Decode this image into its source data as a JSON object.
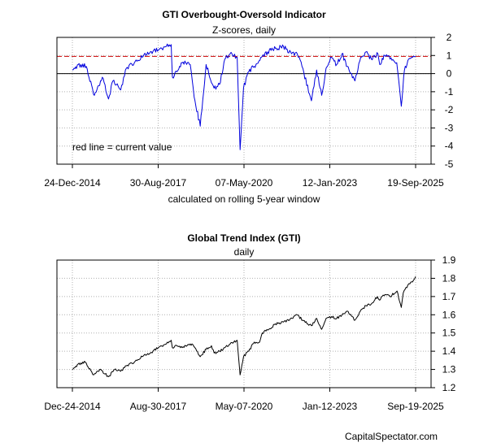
{
  "credit": "CapitalSpectator.com",
  "chart_data": [
    {
      "type": "line",
      "title": "GTI Overbought-Oversold Indicator",
      "subtitle": "Z-scores, daily",
      "xlabel": "calculated on rolling 5-year window",
      "x_tick_labels": [
        "24-Dec-2014",
        "30-Aug-2017",
        "07-May-2020",
        "12-Jan-2023",
        "19-Sep-2025"
      ],
      "y_ticks": [
        -5,
        -4,
        -3,
        -2,
        -1,
        0,
        1,
        2
      ],
      "ylim": [
        -5,
        2
      ],
      "xlim": [
        "2014-12-24",
        "2025-09-19"
      ],
      "grid": true,
      "annotation": "red line = current value",
      "reference_lines": [
        {
          "value": 0,
          "color": "#000000",
          "style": "solid"
        },
        {
          "value": 0.95,
          "color": "#cc0000",
          "style": "dashed"
        }
      ],
      "series": [
        {
          "color": "#0000dd",
          "x": [
            "2014-12-24",
            "2015-03-01",
            "2015-06-01",
            "2015-09-01",
            "2015-12-01",
            "2016-02-10",
            "2016-04-01",
            "2016-06-28",
            "2016-09-01",
            "2016-12-01",
            "2017-03-01",
            "2017-06-01",
            "2017-09-01",
            "2017-12-01",
            "2018-01-26",
            "2018-02-09",
            "2018-04-01",
            "2018-06-01",
            "2018-09-01",
            "2018-10-15",
            "2018-12-24",
            "2019-03-01",
            "2019-05-31",
            "2019-08-01",
            "2019-10-01",
            "2019-12-01",
            "2020-02-19",
            "2020-03-23",
            "2020-05-01",
            "2020-07-01",
            "2020-09-01",
            "2020-11-15",
            "2021-02-01",
            "2021-05-01",
            "2021-08-01",
            "2021-11-01",
            "2022-01-05",
            "2022-03-01",
            "2022-06-16",
            "2022-08-15",
            "2022-10-12",
            "2022-12-01",
            "2023-02-01",
            "2023-04-01",
            "2023-06-01",
            "2023-08-01",
            "2023-10-27",
            "2024-01-01",
            "2024-03-01",
            "2024-05-01",
            "2024-07-15",
            "2024-08-05",
            "2024-10-01",
            "2024-12-01",
            "2025-02-15",
            "2025-04-08",
            "2025-05-15",
            "2025-07-01",
            "2025-08-15",
            "2025-09-19"
          ],
          "values": [
            0.2,
            0.5,
            0.4,
            -1.2,
            -0.2,
            -1.4,
            -0.4,
            -0.9,
            0.3,
            0.6,
            0.9,
            1.2,
            1.3,
            1.5,
            1.6,
            -0.2,
            0.1,
            0.6,
            0.5,
            -1.3,
            -2.9,
            0.5,
            -0.8,
            -0.6,
            0.8,
            1.1,
            0.9,
            -4.2,
            -0.8,
            0.1,
            0.4,
            0.9,
            1.2,
            1.4,
            1.5,
            1.1,
            1.1,
            0.4,
            -1.5,
            0.2,
            -1.2,
            0.3,
            0.9,
            0.5,
            1.1,
            0.4,
            -0.4,
            0.9,
            1.2,
            0.8,
            1.1,
            0.5,
            1.0,
            0.8,
            0.6,
            -1.8,
            0.2,
            0.8,
            0.9,
            0.95
          ]
        }
      ]
    },
    {
      "type": "line",
      "title": "Global Trend Index (GTI)",
      "subtitle": "daily",
      "x_tick_labels": [
        "Dec-24-2014",
        "Aug-30-2017",
        "May-07-2020",
        "Jan-12-2023",
        "Sep-19-2025"
      ],
      "y_ticks": [
        1.2,
        1.3,
        1.4,
        1.5,
        1.6,
        1.7,
        1.8,
        1.9
      ],
      "ylim": [
        1.2,
        1.9
      ],
      "xlim": [
        "2014-12-24",
        "2025-09-19"
      ],
      "grid": true,
      "series": [
        {
          "color": "#000000",
          "x": [
            "2014-12-24",
            "2015-03-01",
            "2015-05-21",
            "2015-08-24",
            "2015-11-01",
            "2016-02-11",
            "2016-04-20",
            "2016-06-27",
            "2016-09-01",
            "2016-12-01",
            "2017-03-01",
            "2017-06-01",
            "2017-09-01",
            "2017-12-01",
            "2018-01-26",
            "2018-02-08",
            "2018-04-01",
            "2018-06-01",
            "2018-09-21",
            "2018-12-24",
            "2019-03-01",
            "2019-05-01",
            "2019-06-01",
            "2019-08-01",
            "2019-10-01",
            "2019-12-01",
            "2020-02-19",
            "2020-03-23",
            "2020-05-01",
            "2020-07-01",
            "2020-09-02",
            "2020-11-01",
            "2020-12-01",
            "2021-02-15",
            "2021-05-01",
            "2021-08-01",
            "2021-11-08",
            "2022-01-04",
            "2022-03-08",
            "2022-06-16",
            "2022-08-16",
            "2022-10-12",
            "2022-12-01",
            "2023-02-01",
            "2023-04-01",
            "2023-06-01",
            "2023-07-31",
            "2023-10-27",
            "2023-12-27",
            "2024-03-01",
            "2024-05-01",
            "2024-07-10",
            "2024-08-05",
            "2024-09-01",
            "2024-10-15",
            "2024-12-01",
            "2025-02-19",
            "2025-04-08",
            "2025-05-01",
            "2025-06-01",
            "2025-07-15",
            "2025-08-15",
            "2025-09-19"
          ],
          "values": [
            1.3,
            1.33,
            1.34,
            1.27,
            1.3,
            1.26,
            1.3,
            1.29,
            1.32,
            1.34,
            1.37,
            1.39,
            1.42,
            1.44,
            1.46,
            1.42,
            1.43,
            1.42,
            1.44,
            1.37,
            1.41,
            1.43,
            1.39,
            1.4,
            1.42,
            1.44,
            1.46,
            1.27,
            1.37,
            1.4,
            1.45,
            1.45,
            1.5,
            1.52,
            1.55,
            1.56,
            1.58,
            1.6,
            1.57,
            1.54,
            1.58,
            1.52,
            1.58,
            1.59,
            1.58,
            1.6,
            1.62,
            1.57,
            1.62,
            1.65,
            1.66,
            1.7,
            1.68,
            1.7,
            1.71,
            1.7,
            1.73,
            1.64,
            1.72,
            1.75,
            1.77,
            1.78,
            1.81
          ]
        }
      ]
    }
  ]
}
